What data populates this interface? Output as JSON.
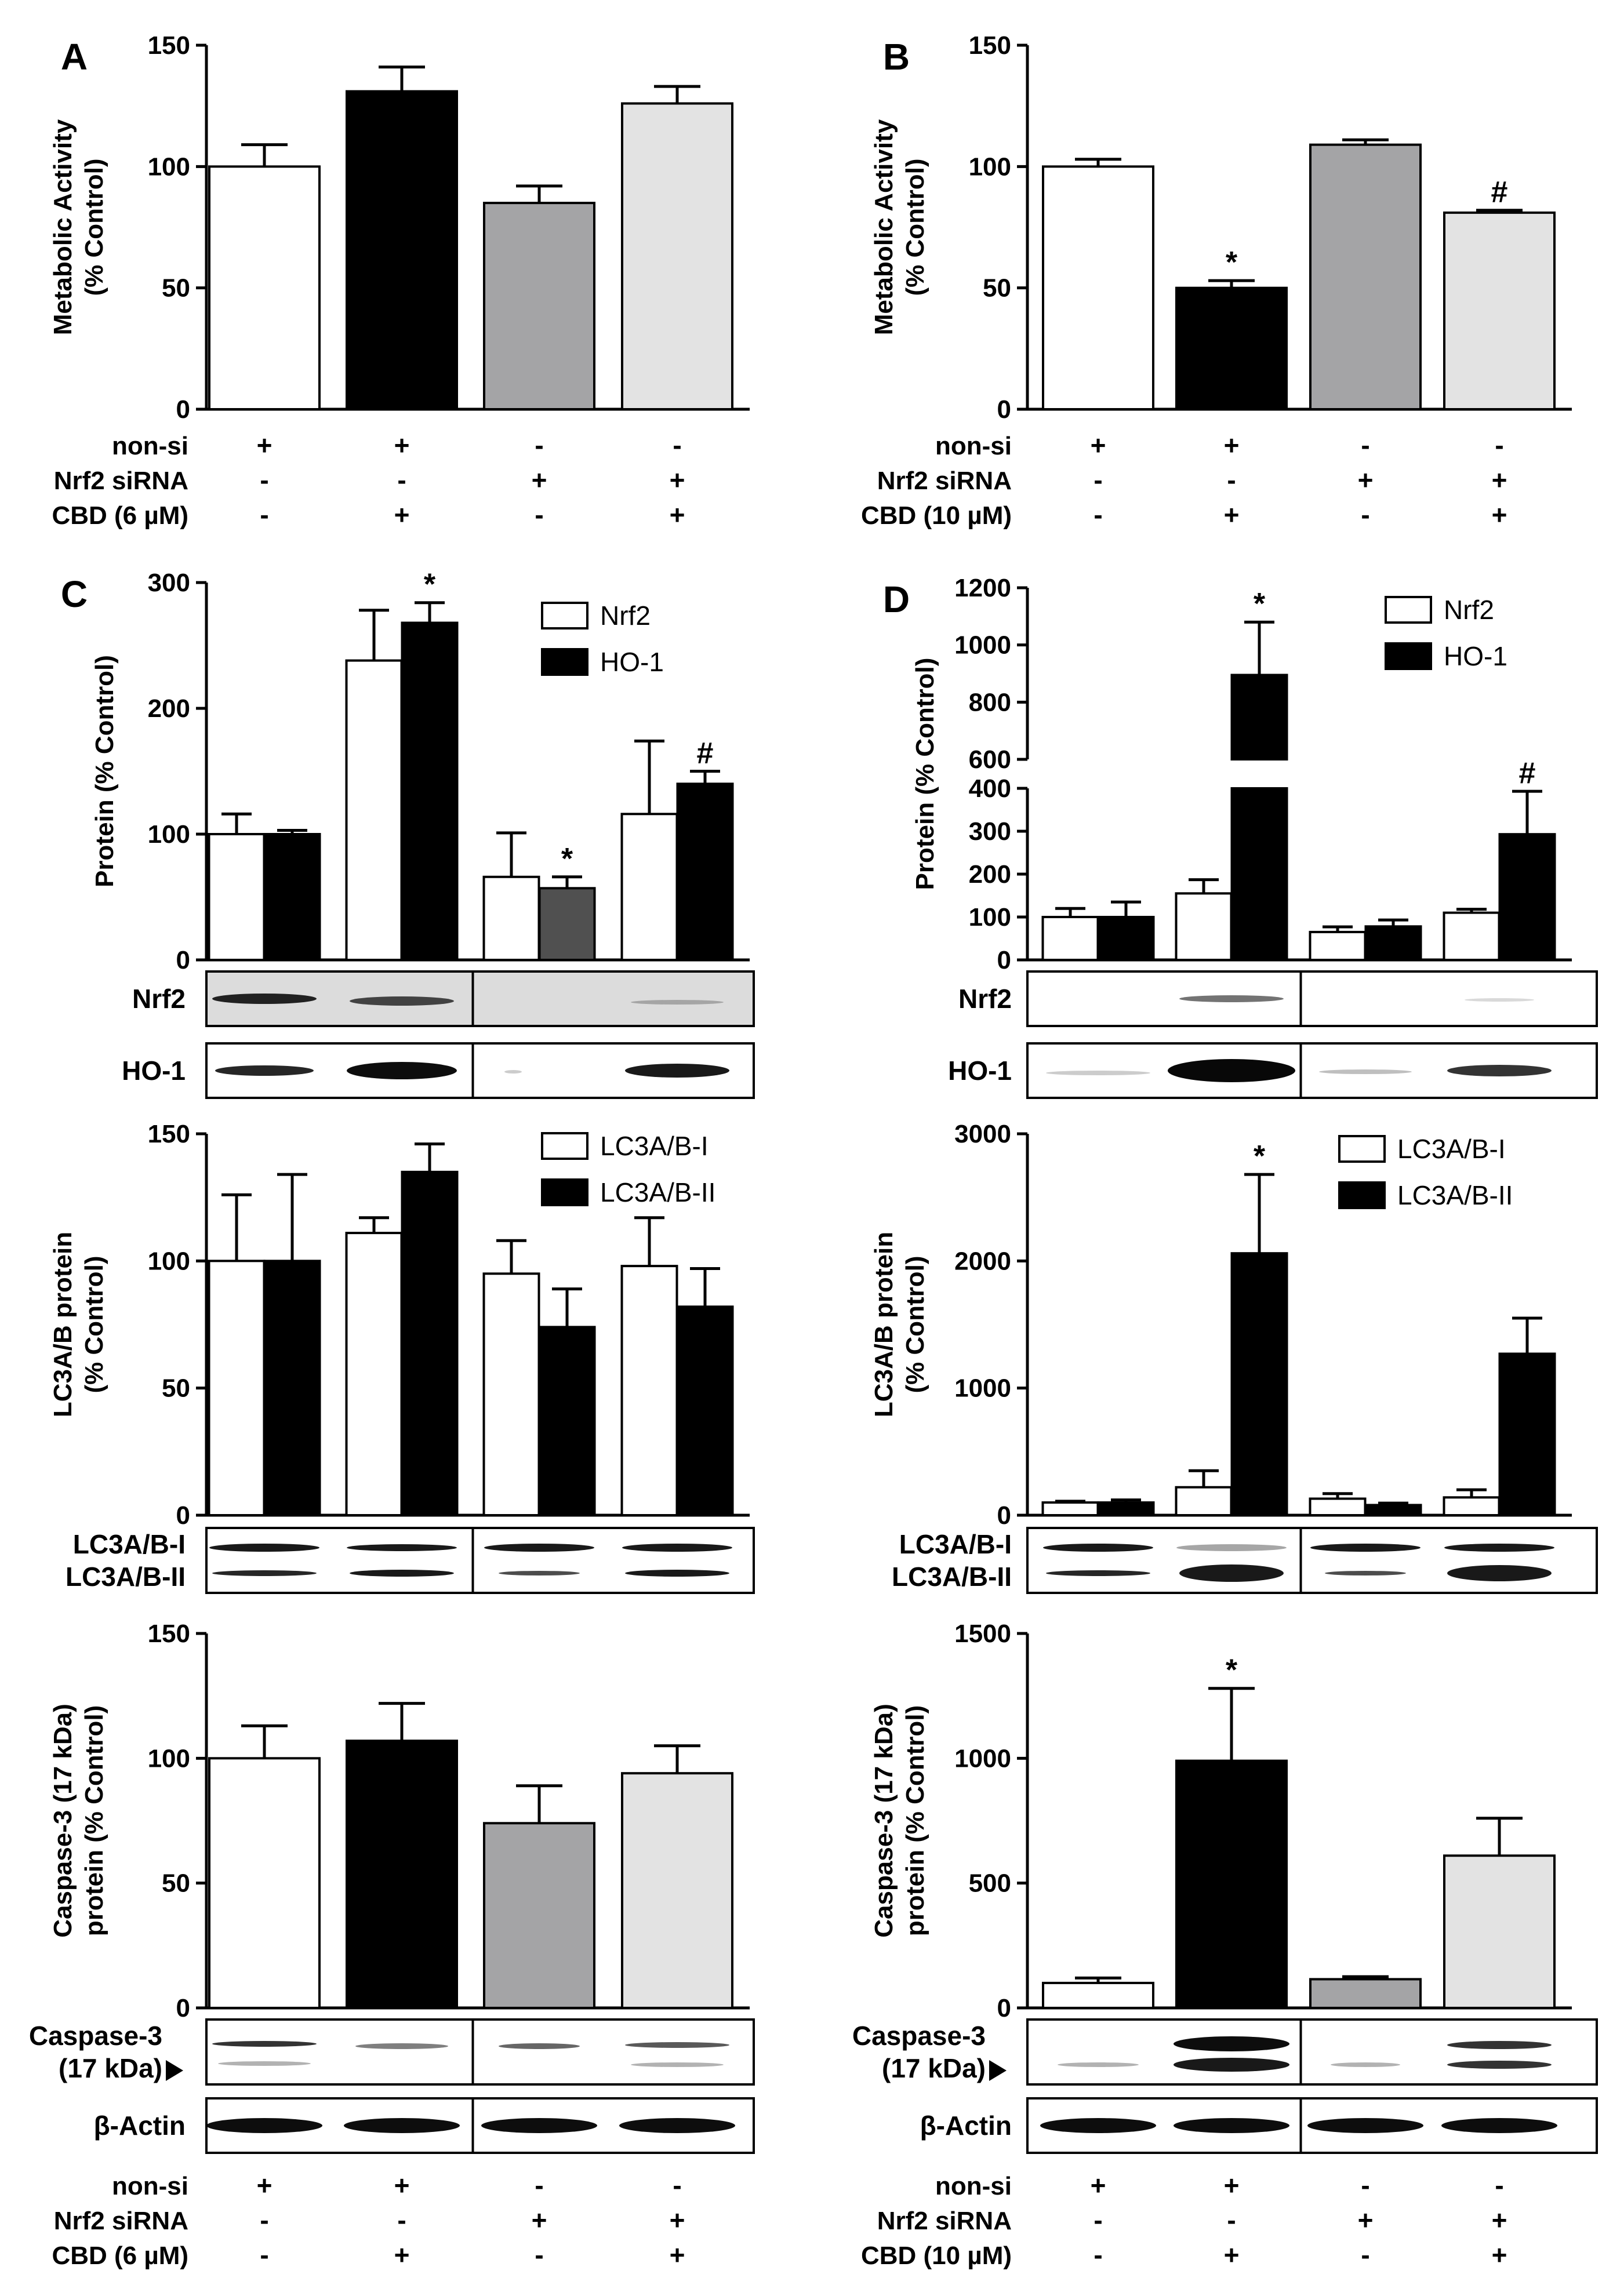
{
  "figure": {
    "colors": {
      "white": "#ffffff",
      "black": "#000000",
      "gray": "#a4a4a6",
      "light": "#e3e3e3",
      "dark": "#505050",
      "blot_bg": "#f2f2f2",
      "blot_bg_dark": "#dcdcdc"
    },
    "treatments_left": {
      "rows": [
        {
          "label": "non-si",
          "signs": [
            "+",
            "+",
            "-",
            "-"
          ]
        },
        {
          "label": "Nrf2 siRNA",
          "signs": [
            "-",
            "-",
            "+",
            "+"
          ]
        },
        {
          "label": "CBD (6 µM)",
          "signs": [
            "-",
            "+",
            "-",
            "+"
          ]
        }
      ]
    },
    "treatments_right": {
      "rows": [
        {
          "label": "non-si",
          "signs": [
            "+",
            "+",
            "-",
            "-"
          ]
        },
        {
          "label": "Nrf2 siRNA",
          "signs": [
            "-",
            "-",
            "+",
            "+"
          ]
        },
        {
          "label": "CBD (10 µM)",
          "signs": [
            "-",
            "+",
            "-",
            "+"
          ]
        }
      ]
    }
  },
  "chart_data": [
    {
      "id": "A",
      "panel_letter": "A",
      "type": "bar",
      "ylabel_lines": [
        "Metabolic Activity",
        "(% Control)"
      ],
      "ylim": [
        0,
        150
      ],
      "ticks": [
        0,
        50,
        100,
        150
      ],
      "groups": 4,
      "series_count": 1,
      "series": [
        {
          "values": [
            100,
            131,
            85,
            126
          ],
          "errors": [
            9,
            10,
            7,
            7
          ],
          "fills": [
            "white",
            "black",
            "gray",
            "light"
          ],
          "sig": [
            "",
            "",
            "",
            ""
          ]
        }
      ]
    },
    {
      "id": "B",
      "panel_letter": "B",
      "type": "bar",
      "ylabel_lines": [
        "Metabolic Activity",
        "(% Control)"
      ],
      "ylim": [
        0,
        150
      ],
      "ticks": [
        0,
        50,
        100,
        150
      ],
      "groups": 4,
      "series_count": 1,
      "series": [
        {
          "values": [
            100,
            50,
            109,
            81
          ],
          "errors": [
            3,
            3,
            2,
            1
          ],
          "fills": [
            "white",
            "black",
            "gray",
            "light"
          ],
          "sig": [
            "",
            "*",
            "",
            "#"
          ]
        }
      ]
    },
    {
      "id": "C1",
      "panel_letter": "C",
      "type": "bar",
      "ylabel_lines": [
        "Protein (% Control)"
      ],
      "ylim": [
        0,
        300
      ],
      "ticks": [
        0,
        100,
        200,
        300
      ],
      "groups": 4,
      "series_count": 2,
      "legend": [
        "Nrf2",
        "HO-1"
      ],
      "series": [
        {
          "name": "Nrf2",
          "values": [
            100,
            238,
            66,
            116
          ],
          "errors": [
            16,
            40,
            35,
            58
          ],
          "fills": [
            "white",
            "white",
            "white",
            "white"
          ],
          "sig": [
            "",
            "",
            "",
            ""
          ]
        },
        {
          "name": "HO-1",
          "values": [
            100,
            268,
            57,
            140
          ],
          "errors": [
            3,
            16,
            9,
            10
          ],
          "fills": [
            "black",
            "black",
            "dark",
            "black"
          ],
          "sig": [
            "",
            "*",
            "*",
            "#"
          ]
        }
      ]
    },
    {
      "id": "D1",
      "panel_letter": "D",
      "type": "bar",
      "ylabel_lines": [
        "Protein (% Control)"
      ],
      "ylim": [
        0,
        1200
      ],
      "broken": true,
      "ticks_lower": [
        0,
        100,
        200,
        300,
        400
      ],
      "ticks_upper": [
        600,
        800,
        1000,
        1200
      ],
      "groups": 4,
      "series_count": 2,
      "legend": [
        "Nrf2",
        "HO-1"
      ],
      "series": [
        {
          "name": "Nrf2",
          "values": [
            100,
            155,
            65,
            110
          ],
          "errors": [
            20,
            32,
            12,
            8
          ],
          "fills": [
            "white",
            "white",
            "white",
            "white"
          ],
          "sig": [
            "",
            "",
            "",
            ""
          ]
        },
        {
          "name": "HO-1",
          "values": [
            100,
            895,
            78,
            293
          ],
          "errors": [
            35,
            185,
            15,
            100
          ],
          "fills": [
            "black",
            "black",
            "black",
            "black"
          ],
          "sig": [
            "",
            "*",
            "",
            "#"
          ]
        }
      ]
    },
    {
      "id": "C2",
      "type": "bar",
      "ylabel_lines": [
        "LC3A/B protein",
        "(% Control)"
      ],
      "ylim": [
        0,
        150
      ],
      "ticks": [
        0,
        50,
        100,
        150
      ],
      "groups": 4,
      "series_count": 2,
      "legend": [
        "LC3A/B-I",
        "LC3A/B-II"
      ],
      "series": [
        {
          "name": "LC3A/B-I",
          "values": [
            100,
            111,
            95,
            98
          ],
          "errors": [
            26,
            6,
            13,
            19
          ],
          "fills": [
            "white",
            "white",
            "white",
            "white"
          ],
          "sig": [
            "",
            "",
            "",
            ""
          ]
        },
        {
          "name": "LC3A/B-II",
          "values": [
            100,
            135,
            74,
            82
          ],
          "errors": [
            34,
            11,
            15,
            15
          ],
          "fills": [
            "black",
            "black",
            "black",
            "black"
          ],
          "sig": [
            "",
            "",
            "",
            ""
          ]
        }
      ]
    },
    {
      "id": "D2",
      "type": "bar",
      "ylabel_lines": [
        "LC3A/B protein",
        "(% Control)"
      ],
      "ylim": [
        0,
        3000
      ],
      "ticks": [
        0,
        1000,
        2000,
        3000
      ],
      "groups": 4,
      "series_count": 2,
      "legend": [
        "LC3A/B-I",
        "LC3A/B-II"
      ],
      "series": [
        {
          "name": "LC3A/B-I",
          "values": [
            100,
            220,
            130,
            140
          ],
          "errors": [
            10,
            130,
            40,
            60
          ],
          "fills": [
            "white",
            "white",
            "white",
            "white"
          ],
          "sig": [
            "",
            "",
            "",
            ""
          ]
        },
        {
          "name": "LC3A/B-II",
          "values": [
            100,
            2060,
            80,
            1270
          ],
          "errors": [
            20,
            620,
            15,
            280
          ],
          "fills": [
            "black",
            "black",
            "black",
            "black"
          ],
          "sig": [
            "",
            "*",
            "",
            ""
          ]
        }
      ]
    },
    {
      "id": "C3",
      "type": "bar",
      "ylabel_lines": [
        "Caspase-3 (17 kDa)",
        "protein (% Control)"
      ],
      "ylim": [
        0,
        150
      ],
      "ticks": [
        0,
        50,
        100,
        150
      ],
      "groups": 4,
      "series_count": 1,
      "series": [
        {
          "values": [
            100,
            107,
            74,
            94
          ],
          "errors": [
            13,
            15,
            15,
            11
          ],
          "fills": [
            "white",
            "black",
            "gray",
            "light"
          ],
          "sig": [
            "",
            "",
            "",
            ""
          ]
        }
      ]
    },
    {
      "id": "D3",
      "type": "bar",
      "ylabel_lines": [
        "Caspase-3 (17 kDa)",
        "protein (% Control)"
      ],
      "ylim": [
        0,
        1500
      ],
      "ticks": [
        0,
        500,
        1000,
        1500
      ],
      "groups": 4,
      "series_count": 1,
      "series": [
        {
          "values": [
            100,
            990,
            115,
            610
          ],
          "errors": [
            20,
            290,
            10,
            150
          ],
          "fills": [
            "white",
            "black",
            "gray",
            "light"
          ],
          "sig": [
            "",
            "*",
            "",
            ""
          ]
        }
      ]
    }
  ],
  "blots": [
    {
      "id": "blotC1",
      "label_lines": [
        "Nrf2"
      ],
      "type": "nrf2-left",
      "shaded": true
    },
    {
      "id": "blotC2",
      "label_lines": [
        "HO-1"
      ],
      "type": "ho1-left"
    },
    {
      "id": "blotC3",
      "label_lines": [
        "LC3A/B-I",
        "LC3A/B-II"
      ],
      "type": "lc3-left"
    },
    {
      "id": "blotC4",
      "label_lines": [
        "Caspase-3",
        "(17 kDa)"
      ],
      "type": "casp-left",
      "arrow": true
    },
    {
      "id": "blotC5",
      "label_lines": [
        "β-Actin"
      ],
      "type": "actin"
    },
    {
      "id": "blotD1",
      "label_lines": [
        "Nrf2"
      ],
      "type": "nrf2-right"
    },
    {
      "id": "blotD2",
      "label_lines": [
        "HO-1"
      ],
      "type": "ho1-right"
    },
    {
      "id": "blotD3",
      "label_lines": [
        "LC3A/B-I",
        "LC3A/B-II"
      ],
      "type": "lc3-right"
    },
    {
      "id": "blotD4",
      "label_lines": [
        "Caspase-3",
        "(17 kDa)"
      ],
      "type": "casp-right",
      "arrow": true
    },
    {
      "id": "blotD5",
      "label_lines": [
        "β-Actin"
      ],
      "type": "actin"
    }
  ]
}
